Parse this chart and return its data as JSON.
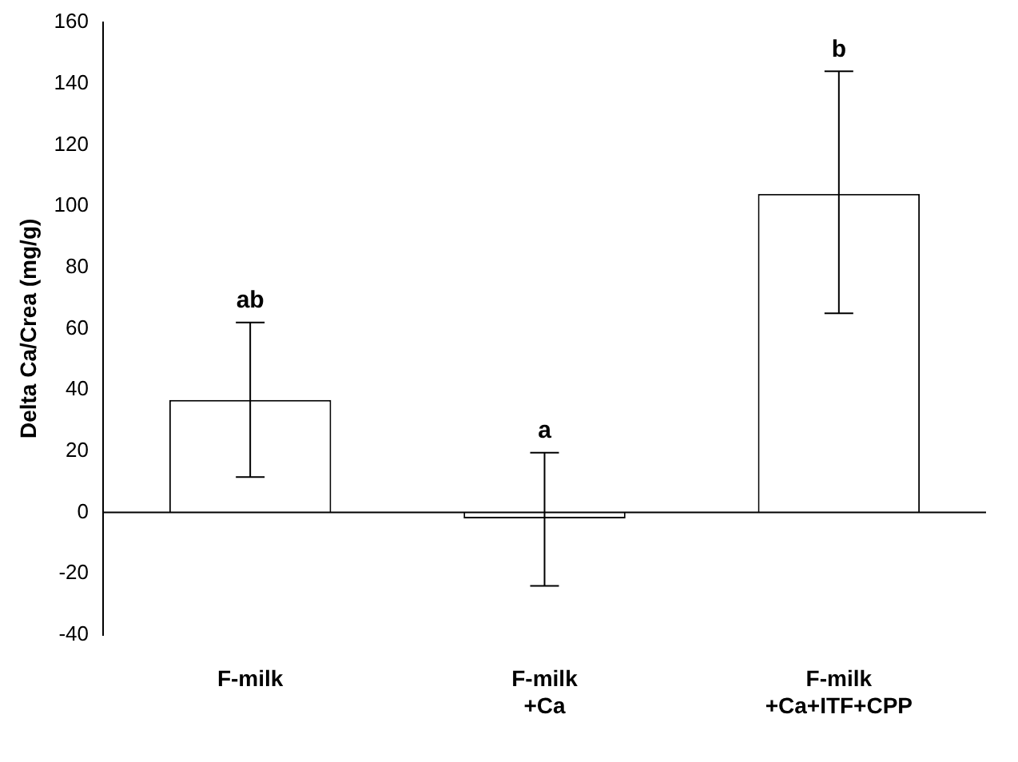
{
  "chart_data": {
    "type": "bar",
    "ylabel": "Delta Ca/Crea (mg/g)",
    "categories": [
      "F-milk",
      "F-milk\n+Ca",
      "F-milk\n+Ca+ITF+CPP"
    ],
    "values": [
      36.7,
      -2,
      104
    ],
    "color": "#ffffff",
    "errors": [
      [
        11.5,
        62
      ],
      [
        -24,
        19.5
      ],
      [
        65,
        144
      ]
    ],
    "ylim": [
      -40,
      160
    ],
    "yticks": [
      -40,
      -20,
      0,
      20,
      40,
      60,
      80,
      100,
      120,
      140,
      160
    ],
    "grid": false,
    "legend": false,
    "ref_lines": [
      {
        "axis": "y",
        "value": 0,
        "color": "#000000"
      }
    ],
    "annotations": [
      {
        "text": "ab",
        "x": "F-milk",
        "y": 62
      },
      {
        "text": "a",
        "x": "F-milk\n+Ca",
        "y": 19.5
      },
      {
        "text": "b",
        "x": "F-milk\n+Ca+ITF+CPP",
        "y": 144
      }
    ]
  }
}
